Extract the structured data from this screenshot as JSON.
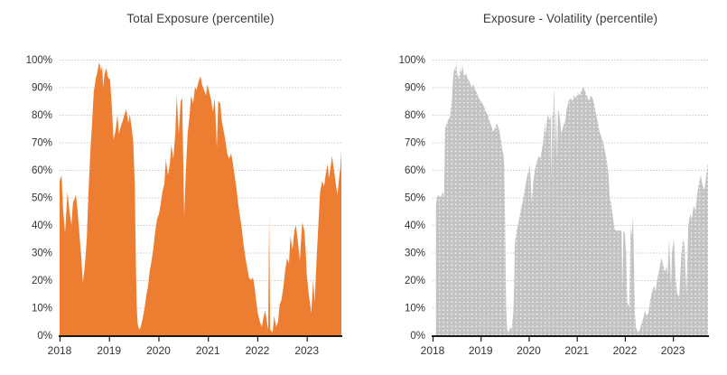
{
  "page": {
    "background": "#ffffff",
    "grid_color": "#c9c9c9",
    "axis_color": "#1a1a1a",
    "label_color": "#333333"
  },
  "chart_data": [
    {
      "type": "area",
      "title": "Total Exposure (percentile)",
      "fill": "#ED7D31",
      "texture": "solid",
      "xlim": [
        2018,
        2023.7
      ],
      "ylim": [
        0,
        100
      ],
      "yticks": [
        0,
        10,
        20,
        30,
        40,
        50,
        60,
        70,
        80,
        90,
        100
      ],
      "ytick_labels": [
        "0%",
        "10%",
        "20%",
        "30%",
        "40%",
        "50%",
        "60%",
        "70%",
        "80%",
        "90%",
        "100%"
      ],
      "xticks": [
        2018,
        2019,
        2020,
        2021,
        2022,
        2023
      ],
      "xtick_labels": [
        "2018",
        "2019",
        "2020",
        "2021",
        "2022",
        "2023"
      ],
      "grid": "horizontal",
      "legend": "none",
      "x": [
        2018.0,
        2018.04,
        2018.07,
        2018.11,
        2018.16,
        2018.2,
        2018.24,
        2018.27,
        2018.33,
        2018.36,
        2018.4,
        2018.44,
        2018.47,
        2018.51,
        2018.55,
        2018.58,
        2018.62,
        2018.66,
        2018.69,
        2018.73,
        2018.77,
        2018.8,
        2018.84,
        2018.86,
        2018.88,
        2018.91,
        2018.95,
        2018.97,
        2019.0,
        2019.02,
        2019.06,
        2019.09,
        2019.13,
        2019.17,
        2019.2,
        2019.24,
        2019.28,
        2019.31,
        2019.35,
        2019.39,
        2019.42,
        2019.46,
        2019.49,
        2019.52,
        2019.54,
        2019.56,
        2019.58,
        2019.61,
        2019.64,
        2019.68,
        2019.72,
        2019.75,
        2019.79,
        2019.82,
        2019.86,
        2019.9,
        2019.93,
        2019.97,
        2020.01,
        2020.04,
        2020.08,
        2020.12,
        2020.15,
        2020.19,
        2020.23,
        2020.26,
        2020.3,
        2020.34,
        2020.37,
        2020.41,
        2020.45,
        2020.48,
        2020.52,
        2020.55,
        2020.59,
        2020.63,
        2020.66,
        2020.7,
        2020.74,
        2020.77,
        2020.81,
        2020.85,
        2020.88,
        2020.92,
        2020.96,
        2020.99,
        2021.03,
        2021.07,
        2021.1,
        2021.14,
        2021.18,
        2021.21,
        2021.25,
        2021.28,
        2021.32,
        2021.36,
        2021.39,
        2021.43,
        2021.47,
        2021.5,
        2021.54,
        2021.58,
        2021.61,
        2021.65,
        2021.69,
        2021.72,
        2021.76,
        2021.8,
        2021.83,
        2021.87,
        2021.91,
        2021.94,
        2021.98,
        2022.01,
        2022.05,
        2022.09,
        2022.12,
        2022.16,
        2022.2,
        2022.22,
        2022.24,
        2022.26,
        2022.31,
        2022.34,
        2022.38,
        2022.42,
        2022.45,
        2022.49,
        2022.53,
        2022.56,
        2022.6,
        2022.64,
        2022.67,
        2022.71,
        2022.75,
        2022.78,
        2022.82,
        2022.86,
        2022.89,
        2022.91,
        2022.95,
        2022.98,
        2023.0,
        2023.04,
        2023.07,
        2023.09,
        2023.13,
        2023.16,
        2023.2,
        2023.24,
        2023.27,
        2023.31,
        2023.35,
        2023.38,
        2023.42,
        2023.45,
        2023.49,
        2023.51,
        2023.55,
        2023.58,
        2023.62,
        2023.66,
        2023.68,
        2023.7
      ],
      "values": [
        56,
        58,
        46,
        37,
        52,
        45,
        40,
        48,
        51,
        46,
        37,
        28,
        19,
        25,
        35,
        50,
        66,
        78,
        88,
        93,
        96,
        99,
        96,
        98,
        90,
        95,
        97,
        94,
        93,
        93,
        82,
        71,
        74,
        80,
        73,
        76,
        78,
        80,
        82,
        77,
        80,
        75,
        70,
        55,
        30,
        10,
        4,
        2,
        3,
        6,
        10,
        14,
        18,
        23,
        27,
        32,
        37,
        42,
        44,
        47,
        52,
        55,
        64,
        58,
        62,
        69,
        64,
        73,
        87,
        73,
        85,
        86,
        43,
        58,
        73,
        80,
        87,
        84,
        90,
        89,
        92,
        94,
        91,
        89,
        87,
        91,
        88,
        85,
        81,
        86,
        68,
        85,
        84,
        78,
        74,
        70,
        66,
        64,
        66,
        63,
        58,
        53,
        48,
        43,
        38,
        33,
        28,
        24,
        21,
        20,
        21,
        18,
        12,
        8,
        5,
        3,
        6,
        9,
        4,
        2,
        43,
        2,
        1,
        7,
        3,
        5,
        11,
        13,
        18,
        23,
        28,
        26,
        36,
        31,
        38,
        40,
        34,
        27,
        36,
        41,
        38,
        30,
        22,
        15,
        11,
        8,
        20,
        12,
        28,
        42,
        52,
        56,
        54,
        58,
        62,
        57,
        62,
        65,
        60,
        56,
        51,
        58,
        61,
        67
      ]
    },
    {
      "type": "area",
      "title": "Exposure - Volatility (percentile)",
      "fill": "#C3C3C3",
      "texture": "dots",
      "xlim": [
        2018,
        2023.73
      ],
      "ylim": [
        0,
        100
      ],
      "yticks": [
        0,
        10,
        20,
        30,
        40,
        50,
        60,
        70,
        80,
        90,
        100
      ],
      "ytick_labels": [
        "0%",
        "10%",
        "20%",
        "30%",
        "40%",
        "50%",
        "60%",
        "70%",
        "80%",
        "90%",
        "100%"
      ],
      "xticks": [
        2018,
        2019,
        2020,
        2021,
        2022,
        2023
      ],
      "xtick_labels": [
        "2018",
        "2019",
        "2020",
        "2021",
        "2022",
        "2023"
      ],
      "grid": "horizontal",
      "legend": "none",
      "x": [
        2018.07,
        2018.09,
        2018.13,
        2018.17,
        2018.21,
        2018.24,
        2018.26,
        2018.3,
        2018.32,
        2018.36,
        2018.4,
        2018.41,
        2018.43,
        2018.45,
        2018.47,
        2018.49,
        2018.51,
        2018.55,
        2018.57,
        2018.6,
        2018.62,
        2018.64,
        2018.66,
        2018.7,
        2018.73,
        2018.77,
        2018.81,
        2018.85,
        2018.88,
        2018.92,
        2018.96,
        2019.0,
        2019.04,
        2019.07,
        2019.11,
        2019.15,
        2019.18,
        2019.22,
        2019.26,
        2019.3,
        2019.33,
        2019.36,
        2019.39,
        2019.43,
        2019.45,
        2019.47,
        2019.49,
        2019.51,
        2019.53,
        2019.55,
        2019.58,
        2019.61,
        2019.64,
        2019.66,
        2019.68,
        2019.7,
        2019.71,
        2019.75,
        2019.79,
        2019.83,
        2019.87,
        2019.91,
        2019.94,
        2019.97,
        2020.0,
        2020.02,
        2020.04,
        2020.06,
        2020.09,
        2020.13,
        2020.15,
        2020.17,
        2020.21,
        2020.24,
        2020.26,
        2020.3,
        2020.32,
        2020.34,
        2020.36,
        2020.38,
        2020.4,
        2020.42,
        2020.44,
        2020.46,
        2020.47,
        2020.49,
        2020.51,
        2020.53,
        2020.55,
        2020.57,
        2020.59,
        2020.61,
        2020.64,
        2020.68,
        2020.72,
        2020.76,
        2020.79,
        2020.83,
        2020.87,
        2020.91,
        2020.94,
        2020.98,
        2021.02,
        2021.06,
        2021.1,
        2021.14,
        2021.18,
        2021.21,
        2021.25,
        2021.29,
        2021.33,
        2021.36,
        2021.4,
        2021.44,
        2021.47,
        2021.51,
        2021.55,
        2021.58,
        2021.62,
        2021.66,
        2021.68,
        2021.71,
        2021.75,
        2021.78,
        2021.81,
        2021.85,
        2021.89,
        2021.93,
        2021.95,
        2021.97,
        2022.0,
        2022.03,
        2022.05,
        2022.09,
        2022.12,
        2022.14,
        2022.17,
        2022.21,
        2022.23,
        2022.27,
        2022.31,
        2022.34,
        2022.38,
        2022.42,
        2022.45,
        2022.49,
        2022.53,
        2022.57,
        2022.61,
        2022.64,
        2022.68,
        2022.72,
        2022.76,
        2022.79,
        2022.83,
        2022.87,
        2022.89,
        2022.92,
        2022.96,
        2022.98,
        2023.02,
        2023.06,
        2023.09,
        2023.13,
        2023.17,
        2023.21,
        2023.24,
        2023.28,
        2023.32,
        2023.36,
        2023.39,
        2023.43,
        2023.47,
        2023.51,
        2023.55,
        2023.58,
        2023.62,
        2023.66,
        2023.7,
        2023.73
      ],
      "values": [
        47,
        50,
        51,
        50,
        52,
        50,
        75,
        77,
        78,
        79,
        85,
        88,
        94,
        97,
        96,
        99,
        95,
        93,
        97,
        95,
        98,
        96,
        94,
        95,
        93,
        92,
        90,
        91,
        89,
        88,
        86,
        85,
        84,
        83,
        81,
        80,
        78,
        76,
        74,
        75,
        77,
        76,
        74,
        70,
        67,
        66,
        62,
        40,
        10,
        2,
        1,
        3,
        2,
        5,
        8,
        20,
        33,
        38,
        41,
        45,
        48,
        52,
        55,
        58,
        60,
        62,
        57,
        48,
        55,
        60,
        62,
        63,
        65,
        64,
        66,
        70,
        74,
        77,
        73,
        78,
        80,
        79,
        78,
        80,
        56,
        79,
        81,
        90,
        67,
        83,
        64,
        82,
        80,
        73,
        76,
        78,
        82,
        85,
        86,
        85,
        87,
        86,
        88,
        87,
        89,
        90,
        88,
        87,
        85,
        87,
        86,
        84,
        80,
        77,
        74,
        72,
        70,
        67,
        64,
        58,
        51,
        48,
        43,
        39,
        38,
        38,
        38,
        38,
        17,
        38,
        37,
        28,
        12,
        10,
        40,
        36,
        43,
        8,
        3,
        1,
        2,
        4,
        6,
        9,
        7,
        8,
        13,
        16,
        18,
        16,
        21,
        24,
        28,
        26,
        23,
        25,
        22,
        35,
        18,
        30,
        35,
        20,
        15,
        14,
        28,
        35,
        33,
        15,
        40,
        44,
        42,
        47,
        45,
        52,
        56,
        58,
        54,
        53,
        59,
        63
      ]
    }
  ]
}
